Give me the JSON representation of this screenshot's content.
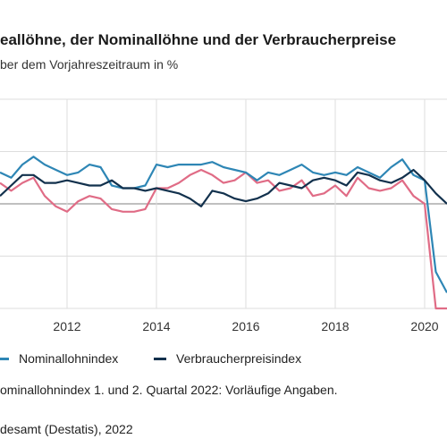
{
  "header": {
    "title": "eallöhne, der Nominallöhne und der Verbraucherpreise",
    "subtitle": "ber dem Vorjahreszeitraum in %"
  },
  "legend": {
    "nominal": "Nominallohnindex",
    "cpi": "Verbraucherpreisindex"
  },
  "footer": {
    "note": "ominallohnindex 1. und 2. Quartal 2022: Vorläufige Angaben.",
    "source": "desamt (Destatis), 2022"
  },
  "colors": {
    "real": "#e06c86",
    "nominal": "#2e86b5",
    "cpi": "#12314d",
    "grid": "#dddddd",
    "zero": "#9a9a9a"
  },
  "chart_data": {
    "type": "line",
    "x": [
      2010.5,
      2010.75,
      2011.0,
      2011.25,
      2011.5,
      2011.75,
      2012.0,
      2012.25,
      2012.5,
      2012.75,
      2013.0,
      2013.25,
      2013.5,
      2013.75,
      2014.0,
      2014.25,
      2014.5,
      2014.75,
      2015.0,
      2015.25,
      2015.5,
      2015.75,
      2016.0,
      2016.25,
      2016.5,
      2016.75,
      2017.0,
      2017.25,
      2017.5,
      2017.75,
      2018.0,
      2018.25,
      2018.5,
      2018.75,
      2019.0,
      2019.25,
      2019.5,
      2019.75,
      2020.0,
      2020.25,
      2020.5
    ],
    "x_tick_labels": [
      "2012",
      "2014",
      "2016",
      "2018",
      "2020"
    ],
    "x_tick_values": [
      2012,
      2014,
      2016,
      2018,
      2020
    ],
    "xlim": [
      2010.5,
      2020.5
    ],
    "ylim": [
      -4,
      4
    ],
    "series": [
      {
        "key": "real",
        "values": [
          0.8,
          0.5,
          0.8,
          1.0,
          0.3,
          -0.1,
          -0.3,
          0.1,
          0.3,
          0.2,
          -0.2,
          -0.3,
          -0.3,
          -0.2,
          0.6,
          0.6,
          0.8,
          1.1,
          1.3,
          1.1,
          0.8,
          0.9,
          1.2,
          0.8,
          0.9,
          0.5,
          0.6,
          0.9,
          0.3,
          0.4,
          0.7,
          0.3,
          1.0,
          0.6,
          0.5,
          0.6,
          0.9,
          0.3,
          0.0,
          -4.0,
          -4.0
        ]
      },
      {
        "key": "nominal",
        "values": [
          1.2,
          1.0,
          1.5,
          1.8,
          1.5,
          1.3,
          1.1,
          1.2,
          1.5,
          1.4,
          0.7,
          0.6,
          0.6,
          0.7,
          1.5,
          1.4,
          1.5,
          1.5,
          1.5,
          1.6,
          1.4,
          1.3,
          1.2,
          0.9,
          1.2,
          1.1,
          1.3,
          1.5,
          1.2,
          1.1,
          1.2,
          1.1,
          1.4,
          1.2,
          1.0,
          1.4,
          1.7,
          1.1,
          0.9,
          -2.6,
          -3.4
        ]
      },
      {
        "key": "cpi",
        "values": [
          0.3,
          0.7,
          1.1,
          1.1,
          0.8,
          0.8,
          0.9,
          0.8,
          0.7,
          0.7,
          0.9,
          0.6,
          0.6,
          0.5,
          0.6,
          0.5,
          0.4,
          0.2,
          -0.1,
          0.5,
          0.4,
          0.2,
          0.1,
          0.2,
          0.4,
          0.8,
          0.7,
          0.6,
          0.9,
          1.0,
          0.9,
          0.7,
          1.2,
          1.1,
          0.9,
          0.8,
          1.0,
          1.3,
          0.9,
          0.4,
          0.0
        ]
      }
    ]
  }
}
